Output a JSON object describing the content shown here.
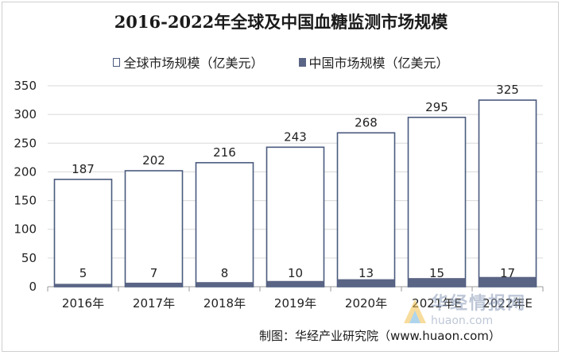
{
  "chart_data": {
    "type": "bar",
    "title": "2016-2022年全球及中国血糖监测市场规模",
    "categories": [
      "2016年",
      "2017年",
      "2018年",
      "2019年",
      "2020年",
      "2021年E",
      "2022年E"
    ],
    "series": [
      {
        "name": "全球市场规模（亿美元）",
        "values": [
          187,
          202,
          216,
          243,
          268,
          295,
          325
        ],
        "style": "outline",
        "color": "#4a5a7e"
      },
      {
        "name": "中国市场规模（亿美元）",
        "values": [
          5,
          7,
          8,
          10,
          13,
          15,
          17
        ],
        "style": "filled",
        "color": "#5a6484"
      }
    ],
    "ylim": [
      0,
      350
    ],
    "yticks": [
      0,
      50,
      100,
      150,
      200,
      250,
      300,
      350
    ],
    "grid": true,
    "legend": "top-center",
    "data_labels": true
  },
  "source": "制图：华经产业研究院（www.huaon.com）",
  "watermark": {
    "brand": "华经情报网",
    "url": "huaon.com"
  }
}
